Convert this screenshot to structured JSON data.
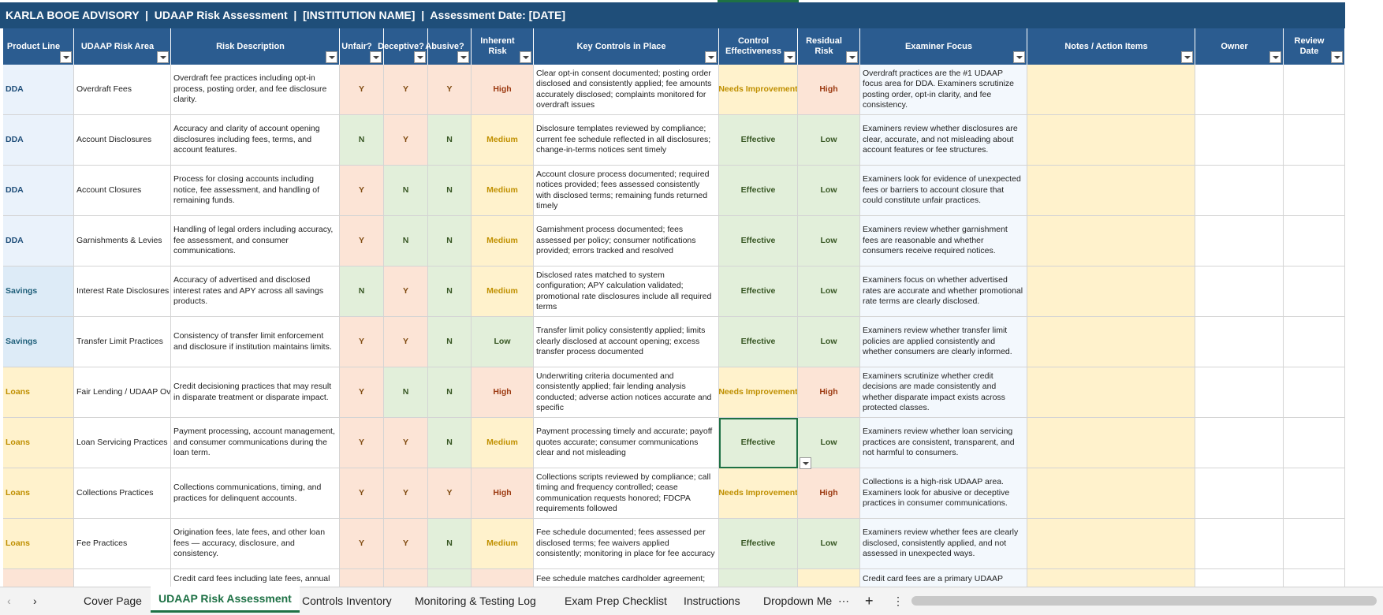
{
  "header": {
    "title": "KARLA BOOE ADVISORY  |  UDAAP Risk Assessment  |  [INSTITUTION NAME]  |  Assessment Date: [DATE]"
  },
  "table": {
    "columns": [
      "Product Line",
      "UDAAP Risk Area",
      "Risk Description",
      "Unfair?",
      "Deceptive?",
      "Abusive?",
      "Inherent Risk",
      "Key Controls in Place",
      "Control Effectiveness",
      "Residual Risk",
      "Examiner Focus",
      "Notes / Action Items",
      "Owner",
      "Review Date"
    ],
    "rows": [
      {
        "product": "DDA",
        "area": "Overdraft Fees",
        "description": "Overdraft fee practices including opt-in process, posting order, and fee disclosure clarity.",
        "unfair": "Y",
        "deceptive": "Y",
        "abusive": "Y",
        "inherent": "High",
        "controls": "Clear opt-in consent documented; posting order disclosed and consistently applied; fee amounts accurately disclosed; complaints monitored for overdraft issues",
        "effectiveness": "Needs Improvement",
        "residual": "High",
        "focus": "Overdraft practices are the #1 UDAAP focus area for DDA. Examiners scrutinize posting order, opt-in clarity, and fee consistency."
      },
      {
        "product": "DDA",
        "area": "Account Disclosures",
        "description": "Accuracy and clarity of account opening disclosures including fees, terms, and account features.",
        "unfair": "N",
        "deceptive": "Y",
        "abusive": "N",
        "inherent": "Medium",
        "controls": "Disclosure templates reviewed by compliance; current fee schedule reflected in all disclosures; change-in-terms notices sent timely",
        "effectiveness": "Effective",
        "residual": "Low",
        "focus": "Examiners review whether disclosures are clear, accurate, and not misleading about account features or fee structures."
      },
      {
        "product": "DDA",
        "area": "Account Closures",
        "description": "Process for closing accounts including notice, fee assessment, and handling of remaining funds.",
        "unfair": "Y",
        "deceptive": "N",
        "abusive": "N",
        "inherent": "Medium",
        "controls": "Account closure process documented; required notices provided; fees assessed consistently with disclosed terms; remaining funds returned timely",
        "effectiveness": "Effective",
        "residual": "Low",
        "focus": "Examiners look for evidence of unexpected fees or barriers to account closure that could constitute unfair practices."
      },
      {
        "product": "DDA",
        "area": "Garnishments & Levies",
        "description": "Handling of legal orders including accuracy, fee assessment, and consumer communications.",
        "unfair": "Y",
        "deceptive": "N",
        "abusive": "N",
        "inherent": "Medium",
        "controls": "Garnishment process documented; fees assessed per policy; consumer notifications provided; errors tracked and resolved",
        "effectiveness": "Effective",
        "residual": "Low",
        "focus": "Examiners review whether garnishment fees are reasonable and whether consumers receive required notices."
      },
      {
        "product": "Savings",
        "area": "Interest Rate Disclosures",
        "description": "Accuracy of advertised and disclosed interest rates and APY across all savings products.",
        "unfair": "N",
        "deceptive": "Y",
        "abusive": "N",
        "inherent": "Medium",
        "controls": "Disclosed rates matched to system configuration; APY calculation validated; promotional rate disclosures include all required terms",
        "effectiveness": "Effective",
        "residual": "Low",
        "focus": "Examiners focus on whether advertised rates are accurate and whether promotional rate terms are clearly disclosed."
      },
      {
        "product": "Savings",
        "area": "Transfer Limit Practices",
        "description": "Consistency of transfer limit enforcement and disclosure if institution maintains limits.",
        "unfair": "Y",
        "deceptive": "Y",
        "abusive": "N",
        "inherent": "Low",
        "controls": "Transfer limit policy consistently applied; limits clearly disclosed at account opening; excess transfer process documented",
        "effectiveness": "Effective",
        "residual": "Low",
        "focus": "Examiners review whether transfer limit policies are applied consistently and whether consumers are clearly informed."
      },
      {
        "product": "Loans",
        "area": "Fair Lending / UDAAP Ov",
        "description": "Credit decisioning practices that may result in disparate treatment or disparate impact.",
        "unfair": "Y",
        "deceptive": "N",
        "abusive": "N",
        "inherent": "High",
        "controls": "Underwriting criteria documented and consistently applied; fair lending analysis conducted; adverse action notices accurate and specific",
        "effectiveness": "Needs Improvement",
        "residual": "High",
        "focus": "Examiners scrutinize whether credit decisions are made consistently and whether disparate impact exists across protected classes."
      },
      {
        "product": "Loans",
        "area": "Loan Servicing Practices",
        "description": "Payment processing, account management, and consumer communications during the loan term.",
        "unfair": "Y",
        "deceptive": "Y",
        "abusive": "N",
        "inherent": "Medium",
        "controls": "Payment processing timely and accurate; payoff quotes accurate; consumer communications clear and not misleading",
        "effectiveness": "Effective",
        "residual": "Low",
        "focus": "Examiners review whether loan servicing practices are consistent, transparent, and not harmful to consumers."
      },
      {
        "product": "Loans",
        "area": "Collections Practices",
        "description": "Collections communications, timing, and practices for delinquent accounts.",
        "unfair": "Y",
        "deceptive": "Y",
        "abusive": "Y",
        "inherent": "High",
        "controls": "Collections scripts reviewed by compliance; call timing and frequency controlled; cease communication requests honored; FDCPA requirements followed",
        "effectiveness": "Needs Improvement",
        "residual": "High",
        "focus": "Collections is a high-risk UDAAP area. Examiners look for abusive or deceptive practices in consumer communications."
      },
      {
        "product": "Loans",
        "area": "Fee Practices",
        "description": "Origination fees, late fees, and other loan fees — accuracy, disclosure, and consistency.",
        "unfair": "Y",
        "deceptive": "Y",
        "abusive": "N",
        "inherent": "Medium",
        "controls": "Fee schedule documented; fees assessed per disclosed terms; fee waivers applied consistently; monitoring in place for fee accuracy",
        "effectiveness": "Effective",
        "residual": "Low",
        "focus": "Examiners review whether fees are clearly disclosed, consistently applied, and not assessed in unexpected ways."
      },
      {
        "description": "Credit card fees including late fees, annual",
        "controls": "Fee schedule matches cardholder agreement;",
        "focus": "Credit card fees are a primary UDAAP"
      }
    ]
  },
  "tabs": [
    "Cover Page",
    "UDAAP Risk Assessment",
    "Controls Inventory",
    "Monitoring & Testing Log",
    "Exam Prep Checklist",
    "Instructions",
    "Dropdown Me"
  ],
  "active_tab": 1
}
